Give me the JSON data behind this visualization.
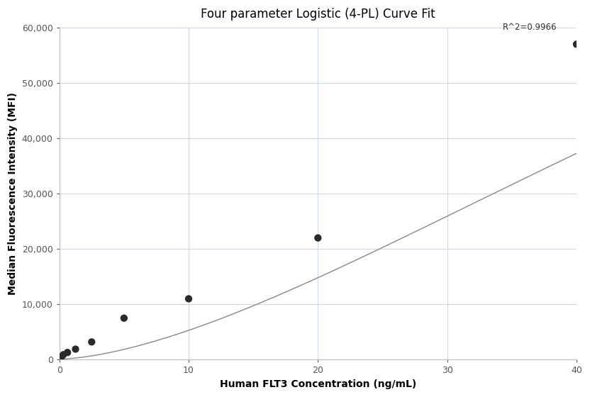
{
  "title": "Four parameter Logistic (4-PL) Curve Fit",
  "xlabel": "Human FLT3 Concentration (ng/mL)",
  "ylabel": "Median Fluorescence Intensity (MFI)",
  "scatter_x": [
    0.16,
    0.31,
    0.63,
    1.25,
    2.5,
    5.0,
    10.0,
    20.0,
    40.0
  ],
  "scatter_y": [
    500,
    900,
    1300,
    1900,
    3200,
    7500,
    11000,
    22000,
    57000
  ],
  "scatter_color": "#2a2a2a",
  "scatter_size": 55,
  "curve_color": "#888888",
  "r2_text": "R^2=0.9966",
  "r2_x": 38.5,
  "r2_y": 59200,
  "xlim": [
    0,
    40
  ],
  "ylim": [
    0,
    60000
  ],
  "yticks": [
    0,
    10000,
    20000,
    30000,
    40000,
    50000,
    60000
  ],
  "ytick_labels": [
    "0",
    "10,000",
    "20,000",
    "30,000",
    "40,000",
    "50,000",
    "60,000"
  ],
  "xticks": [
    0,
    10,
    20,
    30,
    40
  ],
  "background_color": "#ffffff",
  "grid_color": "#ccd6e8",
  "title_fontsize": 12,
  "axis_label_fontsize": 10,
  "tick_fontsize": 9,
  "annotation_fontsize": 8.5
}
